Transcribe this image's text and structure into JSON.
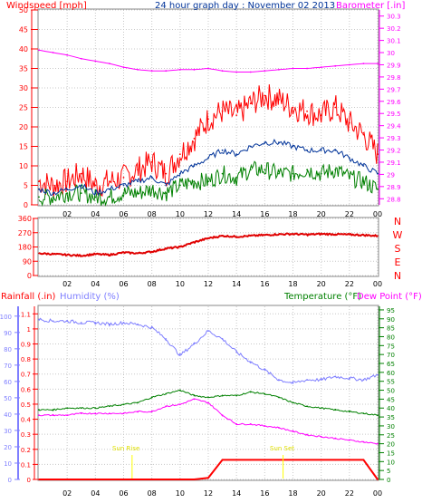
{
  "title": "24 hour graph day : November 02 2013",
  "colors": {
    "wind_gust": "#ff0000",
    "wind_avg": "#003399",
    "wind_min": "#008000",
    "barometer": "#ff00ff",
    "wind_dir": "#e00000",
    "rainfall": "#ff0000",
    "humidity": "#7f7fff",
    "temperature": "#008000",
    "dewpoint": "#ff00ff",
    "sun": "#ffff00",
    "grid": "#c8c8c8",
    "bg": "#ffffff"
  },
  "chart_data": [
    {
      "type": "line",
      "panel": "wind-barometer",
      "title": "24 hour graph day : November 02 2013",
      "ylabel_left": "Windspeed [mph]",
      "ylabel_right": "Barometer [.in]",
      "x_tick_labels": [
        "02",
        "04",
        "06",
        "08",
        "10",
        "12",
        "14",
        "16",
        "18",
        "20",
        "22",
        "00"
      ],
      "y_left_ticks": [
        "0",
        "5",
        "10",
        "15",
        "20",
        "25",
        "30",
        "35",
        "40",
        "45",
        "50"
      ],
      "y_left_range": [
        0,
        50
      ],
      "y_right_ticks": [
        "28.8",
        "28.9",
        "29",
        "29.1",
        "29.2",
        "29.3",
        "29.4",
        "29.5",
        "29.6",
        "29.7",
        "29.8",
        "29.9",
        "30",
        "30.1",
        "30.2",
        "30.3"
      ],
      "y_right_range": [
        28.75,
        30.35
      ],
      "x": [
        0,
        1,
        2,
        3,
        4,
        5,
        6,
        7,
        8,
        9,
        10,
        11,
        12,
        13,
        14,
        15,
        16,
        17,
        18,
        19,
        20,
        21,
        22,
        23,
        24
      ],
      "series": [
        {
          "name": "Gust",
          "values": [
            6,
            5,
            6,
            8,
            5,
            6,
            7,
            9,
            11,
            8,
            13,
            17,
            22,
            24,
            23,
            26,
            28,
            27,
            25,
            24,
            23,
            25,
            21,
            18,
            13
          ]
        },
        {
          "name": "Avg",
          "values": [
            4,
            3,
            4,
            5,
            3,
            4,
            5,
            6,
            7,
            5,
            8,
            10,
            12,
            14,
            13,
            15,
            16,
            16,
            15,
            14,
            14,
            14,
            12,
            10,
            8
          ]
        },
        {
          "name": "Min",
          "values": [
            2,
            2,
            3,
            3,
            2,
            2,
            3,
            3,
            4,
            3,
            5,
            6,
            6,
            8,
            7,
            9,
            9,
            8,
            8,
            9,
            8,
            9,
            7,
            6,
            4
          ]
        },
        {
          "name": "Barometer",
          "values": [
            30.02,
            30.0,
            29.98,
            29.95,
            29.93,
            29.91,
            29.88,
            29.86,
            29.85,
            29.85,
            29.86,
            29.86,
            29.87,
            29.85,
            29.84,
            29.84,
            29.85,
            29.86,
            29.87,
            29.87,
            29.88,
            29.89,
            29.9,
            29.91,
            29.91
          ]
        }
      ]
    },
    {
      "type": "line",
      "panel": "wind-direction",
      "y_left_ticks": [
        "360",
        "270",
        "180",
        "90",
        "0"
      ],
      "y_range": [
        0,
        360
      ],
      "y_right_labels": [
        "N",
        "W",
        "S",
        "E",
        "N"
      ],
      "x_tick_labels": [
        "02",
        "04",
        "06",
        "08",
        "10",
        "12",
        "14",
        "16",
        "18",
        "20",
        "22",
        "00"
      ],
      "x": [
        0,
        1,
        2,
        3,
        4,
        5,
        6,
        7,
        8,
        9,
        10,
        11,
        12,
        13,
        14,
        15,
        16,
        17,
        18,
        19,
        20,
        21,
        22,
        23,
        24
      ],
      "series": [
        {
          "name": "Direction",
          "values": [
            140,
            135,
            130,
            125,
            135,
            130,
            145,
            140,
            150,
            170,
            180,
            210,
            235,
            250,
            245,
            250,
            255,
            260,
            262,
            258,
            262,
            260,
            258,
            255,
            250
          ]
        }
      ]
    },
    {
      "type": "line",
      "panel": "temperature-humidity-rain",
      "ylabel_left": "Rainfall (.in)",
      "ylabel_humidity": "Humidity (%)",
      "ylabel_temperature": "Temperature (°F)",
      "ylabel_dewpoint": "Dew Point (°F)",
      "y_rain_ticks": [
        "0",
        "0.1",
        "0.2",
        "0.3",
        "0.4",
        "0.5",
        "0.6",
        "0.7",
        "0.8",
        "0.9",
        "1",
        "1.1"
      ],
      "y_rain_range": [
        0,
        1.15
      ],
      "y_humidity_ticks": [
        "0",
        "10",
        "20",
        "30",
        "40",
        "50",
        "60",
        "70",
        "80",
        "90",
        "100"
      ],
      "y_humidity_range": [
        0,
        106
      ],
      "y_temp_ticks": [
        "0",
        "5",
        "10",
        "15",
        "20",
        "25",
        "30",
        "35",
        "40",
        "45",
        "50",
        "55",
        "60",
        "65",
        "70",
        "75",
        "80",
        "85",
        "90",
        "95"
      ],
      "y_temp_range": [
        0,
        97
      ],
      "x_tick_labels": [
        "02",
        "04",
        "06",
        "08",
        "10",
        "12",
        "14",
        "16",
        "18",
        "20",
        "22",
        "00"
      ],
      "sunrise_label": "Sun Rise",
      "sunset_label": "Sun Set",
      "sunrise_hour": 6.6,
      "sunset_hour": 17.3,
      "x": [
        0,
        1,
        2,
        3,
        4,
        5,
        6,
        7,
        8,
        9,
        10,
        11,
        12,
        13,
        14,
        15,
        16,
        17,
        18,
        19,
        20,
        21,
        22,
        23,
        24
      ],
      "series": [
        {
          "name": "Humidity",
          "values": [
            98,
            97,
            97,
            96,
            96,
            95,
            96,
            95,
            93,
            86,
            76,
            83,
            91,
            86,
            78,
            72,
            67,
            61,
            59,
            61,
            61,
            63,
            62,
            61,
            64
          ]
        },
        {
          "name": "Temperature",
          "values": [
            39,
            39,
            40,
            40,
            40,
            41,
            42,
            43,
            46,
            48,
            50,
            47,
            46,
            47,
            47,
            49,
            48,
            46,
            43,
            41,
            40,
            39,
            38,
            37,
            36
          ]
        },
        {
          "name": "Dew Point",
          "values": [
            36,
            36,
            36,
            37,
            37,
            37,
            37,
            38,
            38,
            41,
            42,
            45,
            43,
            36,
            31,
            31,
            30,
            29,
            27,
            25,
            24,
            23,
            22,
            21,
            20
          ]
        },
        {
          "name": "Rainfall",
          "values": [
            0,
            0,
            0,
            0,
            0,
            0,
            0,
            0,
            0,
            0,
            0,
            0,
            0.01,
            0.13,
            0.13,
            0.13,
            0.13,
            0.13,
            0.13,
            0.13,
            0.13,
            0.13,
            0.13,
            0.13,
            0
          ]
        }
      ]
    }
  ]
}
